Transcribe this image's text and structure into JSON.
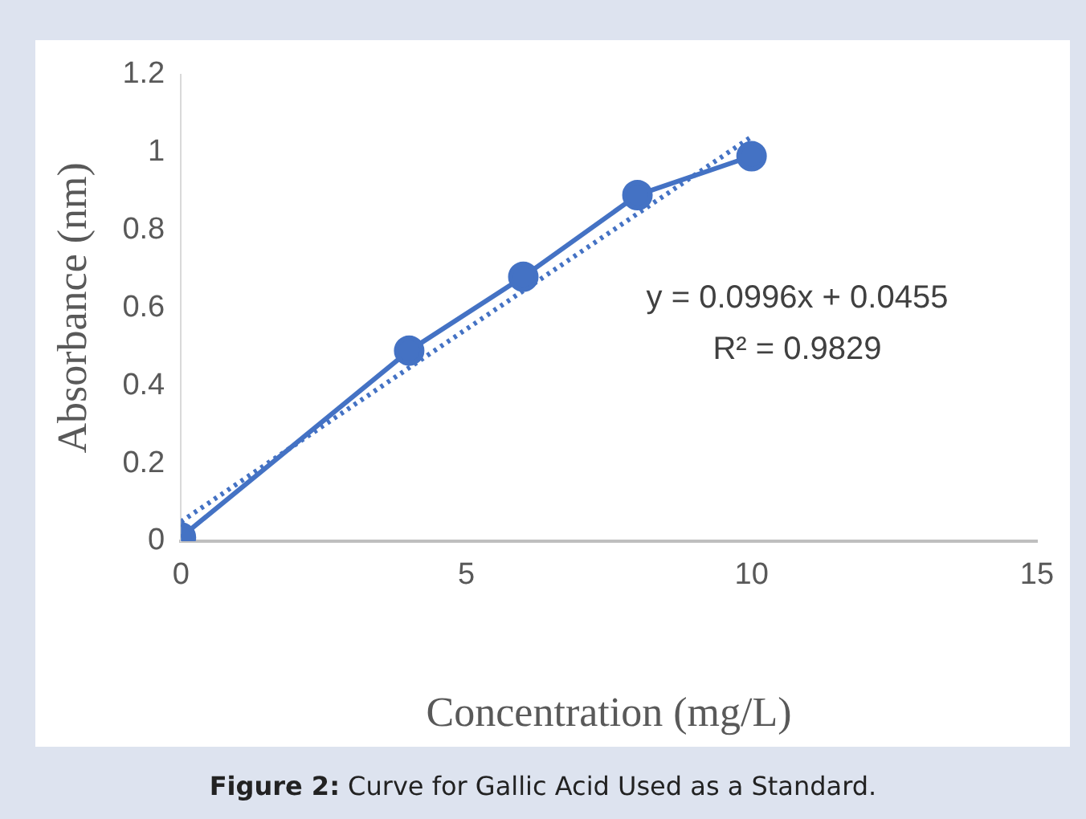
{
  "chart_data": {
    "type": "line",
    "xlabel": "Concentration (mg/L)",
    "ylabel": "Absorbance (nm)",
    "x": [
      0,
      4,
      6,
      8,
      10
    ],
    "series": [
      {
        "color": "#4472c4",
        "values": [
          0.01,
          0.49,
          0.68,
          0.89,
          0.99
        ],
        "marker": "circle",
        "line_style": "solid"
      },
      {
        "type": "line",
        "color": "#4472c4",
        "x": [
          0,
          10
        ],
        "values": [
          0.05,
          1.04
        ],
        "marker": "none",
        "line_style": "dotted"
      }
    ],
    "xlim": [
      0,
      15
    ],
    "xticks": [
      0,
      5,
      10,
      15
    ],
    "ylim": [
      0,
      1.2
    ],
    "yticks": [
      0,
      0.2,
      0.4,
      0.6,
      0.8,
      1,
      1.2
    ],
    "grid": false,
    "legend": false,
    "annotations": [
      "y = 0.0996x + 0.0455",
      "R² = 0.9829",
      "Figure 2: Curve for Gallic Acid Used as a Standard."
    ]
  }
}
